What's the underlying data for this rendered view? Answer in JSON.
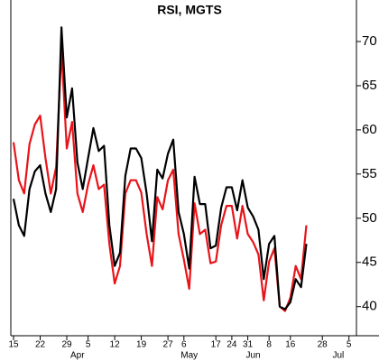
{
  "chart_data": {
    "type": "line",
    "title": "RSI, MGTS",
    "categories": [
      "15",
      null,
      null,
      null,
      null,
      "22",
      null,
      null,
      null,
      null,
      "29",
      null,
      null,
      null,
      "5",
      null,
      null,
      null,
      null,
      "12",
      null,
      null,
      null,
      null,
      "19",
      null,
      null,
      null,
      null,
      "27",
      null,
      null,
      "6",
      null,
      null,
      null,
      null,
      null,
      "17",
      null,
      null,
      "24",
      null,
      null,
      "31",
      null,
      null,
      null,
      "8",
      null,
      null,
      null,
      "16",
      null,
      null,
      null,
      null,
      null,
      "28",
      null,
      null,
      null,
      null,
      "5"
    ],
    "months": [
      null,
      null,
      null,
      null,
      null,
      null,
      null,
      null,
      null,
      null,
      null,
      null,
      "Apr",
      null,
      null,
      null,
      null,
      null,
      null,
      null,
      null,
      null,
      null,
      null,
      null,
      null,
      null,
      null,
      null,
      null,
      null,
      null,
      null,
      "May",
      null,
      null,
      null,
      null,
      null,
      null,
      null,
      null,
      null,
      null,
      null,
      "Jun",
      null,
      null,
      null,
      null,
      null,
      null,
      null,
      null,
      null,
      null,
      null,
      null,
      null,
      null,
      null,
      "Jul",
      null,
      null
    ],
    "series": [
      {
        "color": "#000000",
        "values": [
          52.2,
          49.2,
          48.0,
          53.3,
          55.3,
          56.0,
          52.8,
          50.7,
          53.3,
          71.6,
          61.4,
          64.7,
          56.3,
          53.3,
          56.8,
          60.2,
          57.6,
          58.2,
          49.2,
          44.6,
          46.1,
          54.8,
          57.9,
          57.9,
          56.8,
          52.8,
          47.4,
          55.5,
          54.5,
          57.3,
          58.9,
          50.7,
          48.2,
          44.3,
          54.7,
          51.6,
          51.6,
          46.6,
          46.9,
          51.2,
          53.5,
          53.5,
          50.9,
          54.3,
          51.2,
          50.2,
          48.7,
          43.1,
          47.1,
          48.0,
          40.0,
          39.7,
          40.5,
          43.1,
          42.2,
          47.1,
          null,
          null,
          null,
          null,
          null,
          null,
          null,
          null
        ]
      },
      {
        "color": "#e8141a",
        "values": [
          58.6,
          54.3,
          52.8,
          58.4,
          60.6,
          61.6,
          56.8,
          52.8,
          55.8,
          69.1,
          57.9,
          60.9,
          52.8,
          50.7,
          53.8,
          56.0,
          53.3,
          53.8,
          47.1,
          42.6,
          44.6,
          52.8,
          54.3,
          54.3,
          52.9,
          48.2,
          44.6,
          52.4,
          51.0,
          54.3,
          55.5,
          48.2,
          45.3,
          42.0,
          51.7,
          48.2,
          48.7,
          44.9,
          45.1,
          49.2,
          51.4,
          51.4,
          47.7,
          51.4,
          48.2,
          47.3,
          45.9,
          40.7,
          45.1,
          46.6,
          40.0,
          39.5,
          41.0,
          44.6,
          43.1,
          49.2,
          null,
          null,
          null,
          null,
          null,
          null,
          null,
          null
        ]
      }
    ],
    "ylim": [
      36.7,
      74.7
    ],
    "yticks": [
      40,
      45,
      50,
      55,
      60,
      65,
      70
    ]
  }
}
